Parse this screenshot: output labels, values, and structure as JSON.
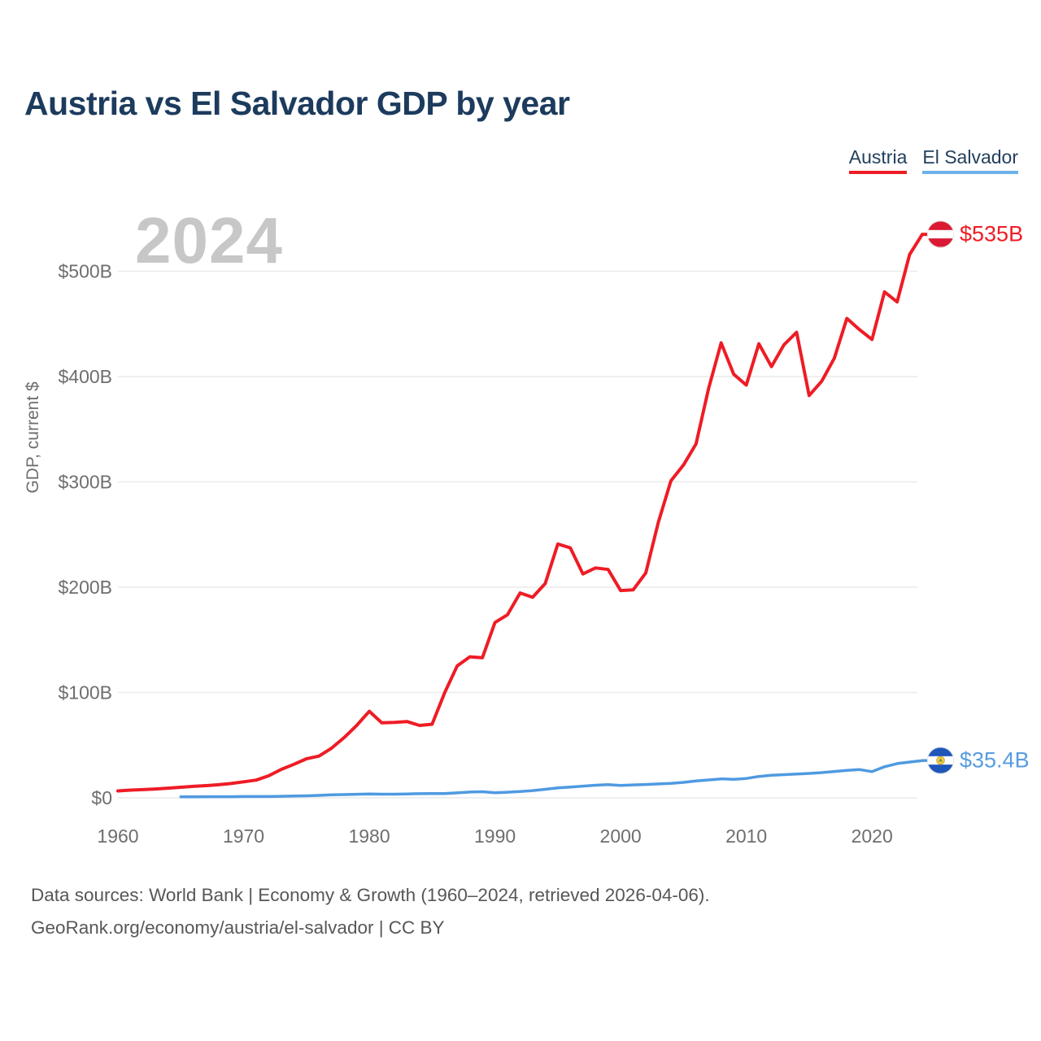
{
  "header": {
    "title": "Austria vs El Salvador GDP by year"
  },
  "legend": {
    "items": [
      {
        "label": "Austria",
        "color": "#ee1c25"
      },
      {
        "label": "El Salvador",
        "color": "#6fb0e8"
      }
    ]
  },
  "chart_data": {
    "type": "line",
    "title": "Austria vs El Salvador GDP by year",
    "ylabel": "GDP, current $",
    "watermark": "2024",
    "grid": true,
    "unit": "billions of current US$",
    "x_axis": {
      "range": [
        1960,
        2024
      ],
      "ticks": [
        1960,
        1970,
        1980,
        1990,
        2000,
        2010,
        2020
      ]
    },
    "y_axis": {
      "range": [
        0,
        500
      ],
      "ticks": [
        {
          "value": 0,
          "label": "$0"
        },
        {
          "value": 100,
          "label": "$100B"
        },
        {
          "value": 200,
          "label": "$200B"
        },
        {
          "value": 300,
          "label": "$300B"
        },
        {
          "value": 400,
          "label": "$400B"
        },
        {
          "value": 500,
          "label": "$500B"
        }
      ]
    },
    "series": [
      {
        "name": "Austria",
        "key": "austria",
        "color": "#ee1c25",
        "label_color": "#ee1c25",
        "line_width": 4,
        "flag_icon": "austria-flag-icon",
        "end_label": "$535B",
        "start_year": 1960,
        "values": [
          6.6,
          7.3,
          7.8,
          8.4,
          9.2,
          10.0,
          10.9,
          11.6,
          12.4,
          13.6,
          15.2,
          16.8,
          20.9,
          27.0,
          31.8,
          37.1,
          39.6,
          47.2,
          57.2,
          68.8,
          82.2,
          71.2,
          71.6,
          72.4,
          68.7,
          69.9,
          99.9,
          125.3,
          133.9,
          133.0,
          166.5,
          173.8,
          194.5,
          190.4,
          203.5,
          241.0,
          237.3,
          212.6,
          218.3,
          216.8,
          196.8,
          197.5,
          213.4,
          261.7,
          300.9,
          316.0,
          336.0,
          388.7,
          432.0,
          402.2,
          391.9,
          431.1,
          409.4,
          430.2,
          442.0,
          382.0,
          395.6,
          417.3,
          455.2,
          444.6,
          435.2,
          480.4,
          470.9,
          516.0,
          535.0
        ]
      },
      {
        "name": "El Salvador",
        "key": "el-salvador",
        "color": "#4f9ae1",
        "label_color": "#579ce0",
        "line_width": 3.5,
        "flag_icon": "el-salvador-flag-icon",
        "end_label": "$35.4B",
        "start_year": 1965,
        "values": [
          0.9,
          1.0,
          1.1,
          1.1,
          1.1,
          1.2,
          1.2,
          1.2,
          1.5,
          1.7,
          1.9,
          2.3,
          2.9,
          3.1,
          3.4,
          3.6,
          3.5,
          3.5,
          3.7,
          3.9,
          4.1,
          4.0,
          4.7,
          5.5,
          5.8,
          4.8,
          5.3,
          6.0,
          6.9,
          8.1,
          9.5,
          10.3,
          11.1,
          12.0,
          12.5,
          11.8,
          12.3,
          12.7,
          13.2,
          13.7,
          14.7,
          16.0,
          17.0,
          18.0,
          17.6,
          18.4,
          20.3,
          21.4,
          22.0,
          22.6,
          23.2,
          23.9,
          25.0,
          26.0,
          26.9,
          24.9,
          29.5,
          32.5,
          34.0,
          35.4
        ]
      }
    ]
  },
  "footer": {
    "line1": "Data sources: World Bank | Economy & Growth (1960–2024, retrieved 2026-04-06).",
    "line2": "GeoRank.org/economy/austria/el-salvador | CC BY"
  }
}
